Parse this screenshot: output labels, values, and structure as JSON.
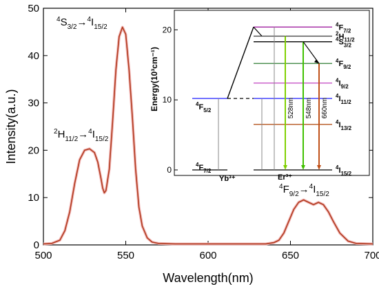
{
  "chart_data": {
    "type": "line",
    "xlabel": "Wavelength(nm)",
    "ylabel": "Intensity(a.u.)",
    "xlim": [
      500,
      700
    ],
    "ylim": [
      0,
      50
    ],
    "x_ticks": [
      "500",
      "550",
      "600",
      "650",
      "700"
    ],
    "y_ticks": [
      "0",
      "10",
      "20",
      "30",
      "40",
      "50"
    ],
    "series": [
      {
        "color": "#b03a1e",
        "x": [
          500,
          505,
          510,
          513,
          516,
          519,
          522,
          525,
          528,
          531,
          533,
          535,
          536,
          537,
          538,
          540,
          542,
          544,
          546,
          548,
          550,
          552,
          554,
          556,
          558,
          560,
          563,
          566,
          570,
          580,
          600,
          620,
          635,
          640,
          643,
          646,
          649,
          652,
          655,
          658,
          661,
          664,
          667,
          670,
          673,
          676,
          680,
          685,
          690,
          700
        ],
        "y": [
          0.2,
          0.3,
          1.0,
          3.0,
          7.0,
          13.0,
          18.0,
          20.0,
          20.3,
          19.5,
          17.5,
          14.0,
          12.0,
          11.0,
          11.5,
          16.0,
          26.0,
          37.0,
          44.0,
          46.0,
          44.5,
          37.0,
          27.0,
          16.0,
          8.0,
          4.0,
          1.5,
          0.6,
          0.3,
          0.2,
          0.2,
          0.2,
          0.2,
          0.5,
          1.0,
          2.5,
          5.0,
          7.5,
          9.0,
          9.5,
          9.0,
          8.5,
          9.0,
          8.5,
          7.0,
          5.0,
          2.5,
          0.8,
          0.3,
          0.2
        ]
      }
    ],
    "annotations": {
      "s32": {
        "main": "4",
        "a": "S",
        "sub1": "3/2",
        "arrow": "→",
        "sup2": "4",
        "b": "I",
        "sub2": "15/2"
      },
      "h112": {
        "sup": "2",
        "a": "H",
        "sub1": "11/2",
        "arrow": "→",
        "sup2": "4",
        "b": "I",
        "sub2": "15/2"
      },
      "f92": {
        "sup": "4",
        "a": "F",
        "sub1": "9/2",
        "arrow": "→",
        "sup2": "4",
        "b": "I",
        "sub2": "15/2"
      }
    },
    "inset": {
      "ylabel": "Energy(10³cm⁻¹)",
      "ylim": [
        0,
        22
      ],
      "y_ticks": [
        "0",
        "10",
        "20"
      ],
      "yb_label": "Yb³⁺",
      "er_label": "Er³⁺",
      "yb_levels": [
        {
          "name": "4F7/2",
          "sup": "4",
          "letter": "F",
          "sub": "7/2",
          "energy": 0
        },
        {
          "name": "4F5/2",
          "sup": "4",
          "letter": "F",
          "sub": "5/2",
          "energy": 10.2
        }
      ],
      "er_levels": [
        {
          "sup": "4",
          "letter": "F",
          "sub": "7/2",
          "energy": 20.4,
          "color": "#a020a0"
        },
        {
          "sup": "2",
          "letter": "H",
          "sub": "11/2",
          "energy": 19.1,
          "color": "#3a3a3a"
        },
        {
          "sup": "4",
          "letter": "S",
          "sub": "3/2",
          "energy": 18.3,
          "color": "#000000"
        },
        {
          "sup": "4",
          "letter": "F",
          "sub": "9/2",
          "energy": 15.2,
          "color": "#2e7d32"
        },
        {
          "sup": "4",
          "letter": "I",
          "sub": "9/2",
          "energy": 12.4,
          "color": "#c040c0"
        },
        {
          "sup": "4",
          "letter": "I",
          "sub": "11/2",
          "energy": 10.2,
          "color": "#1a1aff"
        },
        {
          "sup": "4",
          "letter": "I",
          "sub": "13/2",
          "energy": 6.5,
          "color": "#b5561f"
        },
        {
          "sup": "4",
          "letter": "I",
          "sub": "15/2",
          "energy": 0,
          "color": "#000000"
        }
      ],
      "emissions": [
        {
          "label": "528nm",
          "from": 19.1,
          "color": "#7fd000"
        },
        {
          "label": "548nm",
          "from": 18.3,
          "color": "#40c000"
        },
        {
          "label": "660nm",
          "from": 15.2,
          "color": "#c05018"
        }
      ],
      "colors": {
        "arrow": "#000000",
        "grey_line": "#888888",
        "dashed_link": "#000000"
      }
    }
  }
}
